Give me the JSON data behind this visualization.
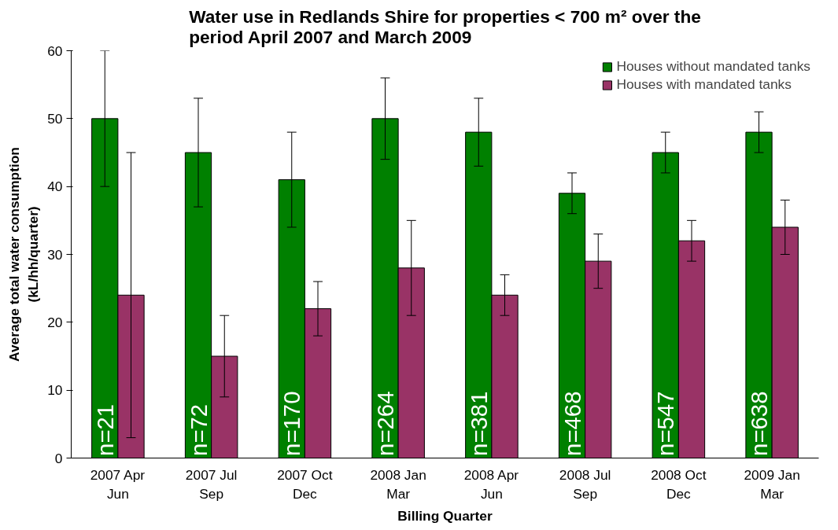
{
  "chart_data": {
    "type": "bar",
    "title": "Water use in Redlands Shire for properties < 700 m² over the period April 2007 and March 2009",
    "xlabel": "Billing Quarter",
    "ylabel": "Average total water consumption (kL/hh/quarter)",
    "categories": [
      "2007 Apr Jun",
      "2007 Jul Sep",
      "2007 Oct Dec",
      "2008 Jan Mar",
      "2008 Apr Jun",
      "2008 Jul Sep",
      "2008 Oct Dec",
      "2009 Jan Mar"
    ],
    "series": [
      {
        "name": "Houses without mandated tanks",
        "color": "#008000",
        "values": [
          50,
          45,
          41,
          50,
          48,
          39,
          45,
          48
        ],
        "errors": [
          [
            40,
            60
          ],
          [
            37,
            53
          ],
          [
            34,
            48
          ],
          [
            44,
            56
          ],
          [
            43,
            53
          ],
          [
            36,
            42
          ],
          [
            42,
            48
          ],
          [
            45,
            51
          ]
        ]
      },
      {
        "name": "Houses with mandated tanks",
        "color": "#993366",
        "values": [
          24,
          15,
          22,
          28,
          24,
          29,
          32,
          34
        ],
        "errors": [
          [
            3,
            45
          ],
          [
            9,
            21
          ],
          [
            18,
            26
          ],
          [
            21,
            35
          ],
          [
            21,
            27
          ],
          [
            25,
            33
          ],
          [
            29,
            35
          ],
          [
            30,
            38
          ]
        ]
      }
    ],
    "annotations": [
      "n=21",
      "n=72",
      "n=170",
      "n=264",
      "n=381",
      "n=468",
      "n=547",
      "n=638"
    ],
    "ylim": [
      0,
      60
    ],
    "yticks": [
      0,
      10,
      20,
      30,
      40,
      50,
      60
    ],
    "grid": false,
    "legend": "top right"
  }
}
